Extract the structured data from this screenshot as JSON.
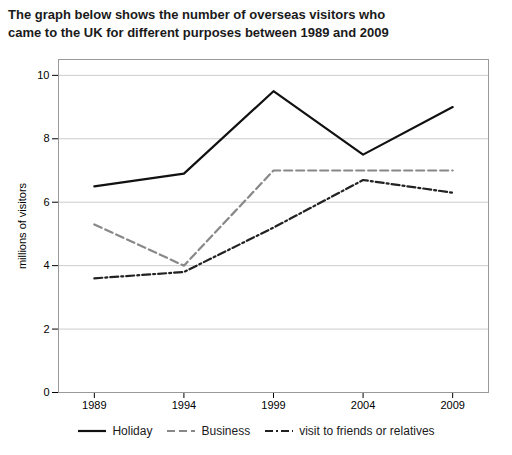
{
  "chart_data": {
    "type": "line",
    "title": "The graph below shows the number of overseas visitors who\ncame to the UK for different purposes between 1989 and 2009",
    "x": [
      1989,
      1994,
      1999,
      2004,
      2009
    ],
    "series": [
      {
        "name": "Holiday",
        "color": "#111111",
        "line_style": "solid",
        "values": [
          6.5,
          6.9,
          9.5,
          7.5,
          9.0
        ]
      },
      {
        "name": "Business",
        "color": "#888888",
        "line_style": "dashed",
        "values": [
          5.3,
          4.0,
          7.0,
          7.0,
          7.0
        ]
      },
      {
        "name": "visit to friends or relatives",
        "color": "#222222",
        "line_style": "dashdot",
        "values": [
          3.6,
          3.8,
          5.2,
          6.7,
          6.3
        ]
      }
    ],
    "ylabel": "millions of visitors",
    "xlim": [
      1987,
      2011
    ],
    "xticks": [
      1989,
      1994,
      1999,
      2004,
      2009
    ],
    "ylim": [
      0,
      10.5
    ],
    "yticks": [
      0,
      2,
      4,
      6,
      8,
      10
    ],
    "grid": "y",
    "legend": "bottom"
  }
}
